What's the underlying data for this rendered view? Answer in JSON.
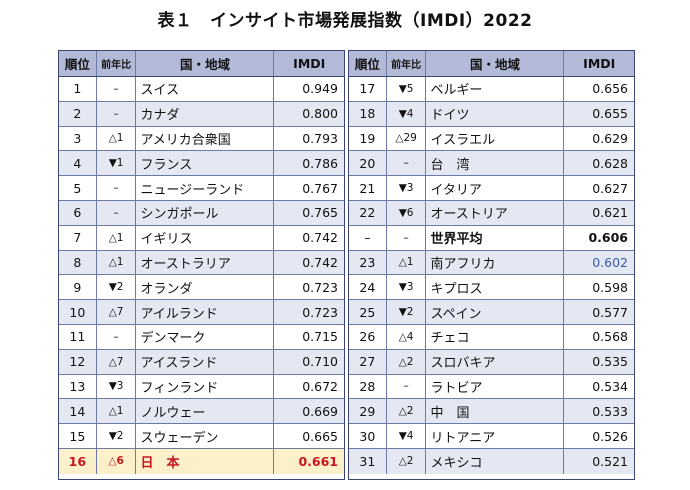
{
  "title": "表１　インサイト市場発展指数（IMDI）2022",
  "headers": {
    "rank": "順位",
    "change": "前年比",
    "country": "国・地域",
    "value": "IMDI"
  },
  "left_rows": [
    {
      "rank": "1",
      "change": "–",
      "country": "スイス",
      "value": "0.949"
    },
    {
      "rank": "2",
      "change": "–",
      "country": "カナダ",
      "value": "0.800"
    },
    {
      "rank": "3",
      "change": "△1",
      "country": "アメリカ合衆国",
      "value": "0.793"
    },
    {
      "rank": "4",
      "change": "▼1",
      "country": "フランス",
      "value": "0.786"
    },
    {
      "rank": "5",
      "change": "–",
      "country": "ニュージーランド",
      "value": "0.767"
    },
    {
      "rank": "6",
      "change": "–",
      "country": "シンガポール",
      "value": "0.765"
    },
    {
      "rank": "7",
      "change": "△1",
      "country": "イギリス",
      "value": "0.742"
    },
    {
      "rank": "8",
      "change": "△1",
      "country": "オーストラリア",
      "value": "0.742"
    },
    {
      "rank": "9",
      "change": "▼2",
      "country": "オランダ",
      "value": "0.723"
    },
    {
      "rank": "10",
      "change": "△7",
      "country": "アイルランド",
      "value": "0.723"
    },
    {
      "rank": "11",
      "change": "–",
      "country": "デンマーク",
      "value": "0.715"
    },
    {
      "rank": "12",
      "change": "△7",
      "country": "アイスランド",
      "value": "0.710"
    },
    {
      "rank": "13",
      "change": "▼3",
      "country": "フィンランド",
      "value": "0.672"
    },
    {
      "rank": "14",
      "change": "△1",
      "country": "ノルウェー",
      "value": "0.669"
    },
    {
      "rank": "15",
      "change": "▼2",
      "country": "スウェーデン",
      "value": "0.665"
    },
    {
      "rank": "16",
      "change": "△6",
      "country": "日　本",
      "value": "0.661"
    }
  ],
  "right_rows": [
    {
      "rank": "17",
      "change": "▼5",
      "country": "ベルギー",
      "value": "0.656"
    },
    {
      "rank": "18",
      "change": "▼4",
      "country": "ドイツ",
      "value": "0.655"
    },
    {
      "rank": "19",
      "change": "△29",
      "country": "イスラエル",
      "value": "0.629"
    },
    {
      "rank": "20",
      "change": "–",
      "country": "台　湾",
      "value": "0.628"
    },
    {
      "rank": "21",
      "change": "▼3",
      "country": "イタリア",
      "value": "0.627"
    },
    {
      "rank": "22",
      "change": "▼6",
      "country": "オーストリア",
      "value": "0.621"
    },
    {
      "rank": "–",
      "change": "–",
      "country": "世界平均",
      "value": "0.606"
    },
    {
      "rank": "23",
      "change": "△1",
      "country": "南アフリカ",
      "value": "0.602"
    },
    {
      "rank": "24",
      "change": "▼3",
      "country": "キプロス",
      "value": "0.598"
    },
    {
      "rank": "25",
      "change": "▼2",
      "country": "スペイン",
      "value": "0.577"
    },
    {
      "rank": "26",
      "change": "△4",
      "country": "チェコ",
      "value": "0.568"
    },
    {
      "rank": "27",
      "change": "△2",
      "country": "スロバキア",
      "value": "0.535"
    },
    {
      "rank": "28",
      "change": "–",
      "country": "ラトビア",
      "value": "0.534"
    },
    {
      "rank": "29",
      "change": "△2",
      "country": "中　国",
      "value": "0.533"
    },
    {
      "rank": "30",
      "change": "▼4",
      "country": "リトアニア",
      "value": "0.526"
    },
    {
      "rank": "31",
      "change": "△2",
      "country": "メキシコ",
      "value": "0.521"
    }
  ]
}
